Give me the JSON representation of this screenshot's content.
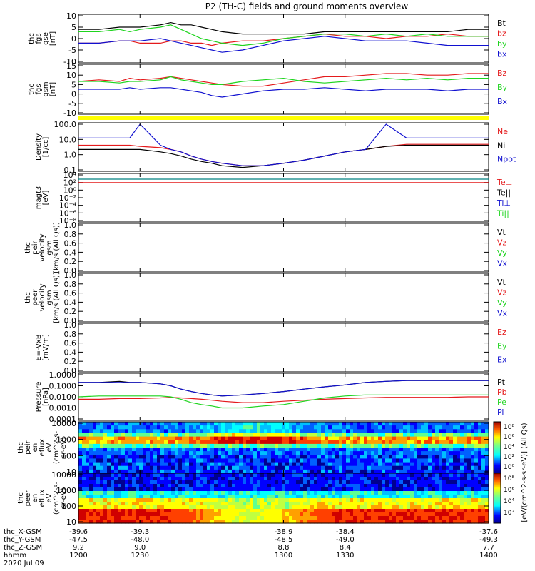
{
  "title": "P2 (TH-C) fields and ground moments overview",
  "colors": {
    "black": "#000000",
    "red": "#e41a1c",
    "green": "#1ed41e",
    "blue": "#1010d0",
    "yellow": "#ffff00",
    "teal": "#008080"
  },
  "chart_data": [
    {
      "type": "line",
      "panel": "fgs_gse",
      "ylabel": [
        "thc",
        "fgs",
        "gse",
        "[nT]"
      ],
      "ylim": [
        -10,
        10
      ],
      "yticks": [
        "10",
        "5",
        "0",
        "-5",
        "-10"
      ],
      "legend": [
        {
          "label": "Bt",
          "color": "black"
        },
        {
          "label": "bz",
          "color": "red"
        },
        {
          "label": "by",
          "color": "green"
        },
        {
          "label": "bx",
          "color": "blue"
        }
      ],
      "x": [
        1200,
        1210,
        1220,
        1225,
        1230,
        1240,
        1245,
        1250,
        1255,
        1260,
        1265,
        1270,
        1280,
        1290,
        1300,
        1310,
        1320,
        1330,
        1340,
        1350,
        1360,
        1370,
        1380,
        1390,
        1400
      ],
      "series": [
        {
          "legend": "Bt",
          "color": "black",
          "values": [
            4,
            4,
            5,
            5,
            5,
            6,
            7,
            6,
            6,
            5,
            4,
            3,
            2,
            2,
            2,
            2,
            3,
            3,
            3,
            3,
            3,
            3,
            3,
            4,
            4
          ]
        },
        {
          "legend": "bz",
          "color": "red",
          "values": [
            -2,
            -2,
            -1,
            -1,
            -2,
            -2,
            -1,
            -1,
            -2,
            -2,
            -3,
            -2,
            -1,
            -1,
            0,
            1,
            2,
            1,
            1,
            0,
            1,
            1,
            2,
            1,
            1
          ]
        },
        {
          "legend": "by",
          "color": "green",
          "values": [
            3,
            3,
            4,
            3,
            4,
            5,
            6,
            4,
            2,
            0,
            -1,
            -2,
            -3,
            -2,
            0,
            1,
            2,
            2,
            1,
            2,
            1,
            2,
            1,
            1,
            1
          ]
        },
        {
          "legend": "bx",
          "color": "blue",
          "values": [
            -2,
            -2,
            -1,
            -1,
            -1,
            0,
            -1,
            -2,
            -3,
            -4,
            -5,
            -6,
            -5,
            -3,
            -1,
            0,
            1,
            0,
            -1,
            -1,
            -1,
            -2,
            -3,
            -3,
            -3
          ]
        }
      ]
    },
    {
      "type": "line",
      "panel": "fgs_gsm",
      "ylabel": [
        "thc",
        "fgs",
        "gsm",
        "[nT]"
      ],
      "ylim": [
        -15,
        15
      ],
      "yticks": [
        "15",
        "10",
        "5",
        "0",
        "-5",
        "-10"
      ],
      "legend": [
        {
          "label": "Bz",
          "color": "red"
        },
        {
          "label": "By",
          "color": "green"
        },
        {
          "label": "Bx",
          "color": "blue"
        }
      ],
      "x": [
        1200,
        1210,
        1220,
        1225,
        1230,
        1240,
        1245,
        1250,
        1255,
        1260,
        1265,
        1270,
        1280,
        1290,
        1300,
        1310,
        1320,
        1330,
        1340,
        1350,
        1360,
        1370,
        1380,
        1390,
        1400
      ],
      "series": [
        {
          "legend": "Bz",
          "color": "red",
          "values": [
            5,
            6,
            5,
            7,
            6,
            7,
            8,
            7,
            6,
            5,
            4,
            3,
            2,
            2,
            4,
            6,
            8,
            8,
            9,
            10,
            10,
            9,
            9,
            10,
            10
          ]
        },
        {
          "legend": "By",
          "color": "green",
          "values": [
            5,
            5,
            4,
            5,
            5,
            6,
            8,
            6,
            5,
            4,
            3,
            3,
            5,
            6,
            7,
            5,
            4,
            5,
            6,
            7,
            6,
            7,
            6,
            7,
            7
          ]
        },
        {
          "legend": "Bx",
          "color": "blue",
          "values": [
            0,
            0,
            0,
            1,
            0,
            1,
            1,
            0,
            -1,
            -2,
            -4,
            -5,
            -3,
            -1,
            0,
            0,
            1,
            0,
            -1,
            0,
            0,
            0,
            -1,
            0,
            0
          ]
        }
      ]
    },
    {
      "type": "line",
      "panel": "density",
      "ylabel": [
        "Density",
        "[1/cc]"
      ],
      "ylog": true,
      "ylim": [
        0.1,
        200
      ],
      "yticks": [
        "100.0",
        "10.0",
        "1.0",
        "0.1"
      ],
      "legend": [
        {
          "label": "Ne",
          "color": "red"
        },
        {
          "label": "Ni",
          "color": "black"
        },
        {
          "label": "Npot",
          "color": "blue"
        }
      ],
      "x": [
        1200,
        1210,
        1220,
        1225,
        1230,
        1240,
        1245,
        1250,
        1255,
        1260,
        1265,
        1270,
        1280,
        1290,
        1300,
        1310,
        1320,
        1330,
        1340,
        1350,
        1360,
        1370,
        1380,
        1390,
        1400
      ],
      "series": [
        {
          "legend": "Ne",
          "color": "red",
          "values": [
            6,
            6,
            6,
            6,
            5,
            4,
            3,
            2,
            1,
            0.6,
            0.4,
            0.3,
            0.2,
            0.2,
            0.3,
            0.5,
            1,
            2,
            3,
            5,
            7,
            7,
            7,
            7,
            7
          ]
        },
        {
          "legend": "Ni",
          "color": "black",
          "values": [
            3,
            3,
            3,
            3,
            3,
            2,
            1.5,
            1,
            0.6,
            0.4,
            0.3,
            0.2,
            0.15,
            0.2,
            0.3,
            0.5,
            1,
            2,
            3,
            5,
            6,
            6,
            6,
            6,
            6
          ]
        },
        {
          "legend": "Npot",
          "color": "blue",
          "values": [
            20,
            20,
            20,
            20,
            200,
            6,
            3,
            2,
            1,
            0.6,
            0.4,
            0.3,
            0.2,
            0.2,
            0.3,
            0.5,
            1,
            2,
            3,
            200,
            20,
            20,
            20,
            20,
            20
          ]
        }
      ]
    },
    {
      "type": "line",
      "panel": "temperature",
      "ylabel": [
        "magt3",
        "[eV]"
      ],
      "ylog": true,
      "ylim": [
        1e-08,
        10000
      ],
      "yticks": [
        "10⁴",
        "10²",
        "10⁰",
        "10⁻²",
        "10⁻⁴",
        "10⁻⁶",
        "10⁻⁸"
      ],
      "legend": [
        {
          "label": "Te⊥",
          "color": "red"
        },
        {
          "label": "Te||",
          "color": "black"
        },
        {
          "label": "Ti⊥",
          "color": "blue"
        },
        {
          "label": "Ti||",
          "color": "green"
        }
      ]
    },
    {
      "type": "line",
      "panel": "peir_velocity",
      "ylabel": [
        "thc",
        "peir",
        "velocity",
        "gsm",
        "[km/s (All Qs)]"
      ],
      "ylim": [
        0,
        1
      ],
      "yticks": [
        "1.0",
        "0.8",
        "0.6",
        "0.4",
        "0.2",
        "0.0"
      ],
      "legend": [
        {
          "label": "Vt",
          "color": "black"
        },
        {
          "label": "Vz",
          "color": "red"
        },
        {
          "label": "Vy",
          "color": "green"
        },
        {
          "label": "Vx",
          "color": "blue"
        }
      ]
    },
    {
      "type": "line",
      "panel": "peer_velocity",
      "ylabel": [
        "thc",
        "peer",
        "velocity",
        "gsm",
        "[km/s (All Qs)]"
      ],
      "ylim": [
        0,
        1
      ],
      "yticks": [
        "1.0",
        "0.8",
        "0.6",
        "0.4",
        "0.2",
        "0.0"
      ],
      "legend": [
        {
          "label": "Vt",
          "color": "black"
        },
        {
          "label": "Vz",
          "color": "red"
        },
        {
          "label": "Vy",
          "color": "green"
        },
        {
          "label": "Vx",
          "color": "blue"
        }
      ]
    },
    {
      "type": "line",
      "panel": "efield",
      "ylabel": [
        "E=-VxB",
        "[mV/m]"
      ],
      "ylim": [
        0,
        1
      ],
      "yticks": [
        "1.0",
        "0.8",
        "0.6",
        "0.4",
        "0.2",
        "0.0"
      ],
      "legend": [
        {
          "label": "Ez",
          "color": "red"
        },
        {
          "label": "Ey",
          "color": "green"
        },
        {
          "label": "Ex",
          "color": "blue"
        }
      ]
    },
    {
      "type": "line",
      "panel": "pressure",
      "ylabel": [
        "Pressure",
        "[nPa]"
      ],
      "ylog": true,
      "ylim": [
        0.0001,
        1
      ],
      "yticks": [
        "1.0000",
        "0.1000",
        "0.0100",
        "0.0010",
        "0.0001"
      ],
      "legend": [
        {
          "label": "Pt",
          "color": "black"
        },
        {
          "label": "Pb",
          "color": "red"
        },
        {
          "label": "Pe",
          "color": "green"
        },
        {
          "label": "Pi",
          "color": "blue"
        }
      ],
      "x": [
        1200,
        1210,
        1220,
        1225,
        1230,
        1240,
        1245,
        1250,
        1255,
        1260,
        1265,
        1270,
        1280,
        1290,
        1300,
        1310,
        1320,
        1330,
        1340,
        1350,
        1360,
        1370,
        1380,
        1390,
        1400
      ],
      "series": [
        {
          "legend": "Pt",
          "color": "black",
          "values": [
            0.2,
            0.2,
            0.25,
            0.2,
            0.2,
            0.15,
            0.1,
            0.05,
            0.03,
            0.02,
            0.015,
            0.012,
            0.015,
            0.02,
            0.03,
            0.05,
            0.08,
            0.12,
            0.2,
            0.25,
            0.3,
            0.3,
            0.3,
            0.3,
            0.3
          ]
        },
        {
          "legend": "Pb",
          "color": "red",
          "values": [
            0.006,
            0.006,
            0.007,
            0.007,
            0.007,
            0.008,
            0.009,
            0.008,
            0.007,
            0.006,
            0.005,
            0.004,
            0.003,
            0.003,
            0.004,
            0.005,
            0.006,
            0.007,
            0.008,
            0.009,
            0.009,
            0.009,
            0.009,
            0.01,
            0.01
          ]
        },
        {
          "legend": "Pe",
          "color": "green",
          "values": [
            0.01,
            0.012,
            0.012,
            0.012,
            0.012,
            0.012,
            0.01,
            0.006,
            0.003,
            0.002,
            0.0015,
            0.001,
            0.001,
            0.0015,
            0.002,
            0.004,
            0.008,
            0.012,
            0.015,
            0.015,
            0.015,
            0.015,
            0.015,
            0.015,
            0.015
          ]
        },
        {
          "legend": "Pi",
          "color": "blue",
          "values": [
            0.2,
            0.2,
            0.2,
            0.2,
            0.2,
            0.15,
            0.1,
            0.05,
            0.03,
            0.02,
            0.015,
            0.012,
            0.015,
            0.02,
            0.03,
            0.05,
            0.08,
            0.12,
            0.2,
            0.25,
            0.3,
            0.3,
            0.3,
            0.3,
            0.3
          ]
        }
      ]
    },
    {
      "type": "heatmap",
      "panel": "peir_eflux",
      "ylabel": [
        "thc",
        "peir",
        "en",
        "eflux",
        "eV",
        "(cm^2-s-",
        "sr-eV)"
      ],
      "ylog": true,
      "yticks": [
        "10000",
        "1000",
        "100",
        "10"
      ]
    },
    {
      "type": "heatmap",
      "panel": "peer_eflux",
      "ylabel": [
        "thc",
        "peer",
        "en",
        "eflux",
        "eV",
        "(cm^2-s-",
        "sr-eV)"
      ],
      "ylog": true,
      "yticks": [
        "10000",
        "1000",
        "100",
        "10"
      ]
    }
  ],
  "colorbar": {
    "label": "[eV/(cm^2-s-sr-eV)] (All Qs)",
    "ticks_top": [
      "10⁸",
      "10⁶",
      "10⁴",
      "10²",
      "10⁰"
    ],
    "ticks_bottom": [
      "10⁸",
      "10⁶",
      "10⁴",
      "10²"
    ]
  },
  "xaxis": {
    "row_labels": [
      "thc_X-GSM",
      "thc_Y-GSM",
      "thc_Z-GSM",
      "hhmm",
      "2020 Jul 09"
    ],
    "columns": [
      {
        "values": [
          "-39.6",
          "-47.5",
          "9.2",
          "1200"
        ]
      },
      {
        "values": [
          "-39.3",
          "-48.0",
          "9.0",
          "1230"
        ]
      },
      {
        "values": [
          "-38.9",
          "-48.5",
          "8.8",
          "1300"
        ]
      },
      {
        "values": [
          "-38.4",
          "-49.0",
          "8.4",
          "1330"
        ]
      },
      {
        "values": [
          "-37.6",
          "-49.3",
          "7.7",
          "1400"
        ]
      }
    ]
  }
}
